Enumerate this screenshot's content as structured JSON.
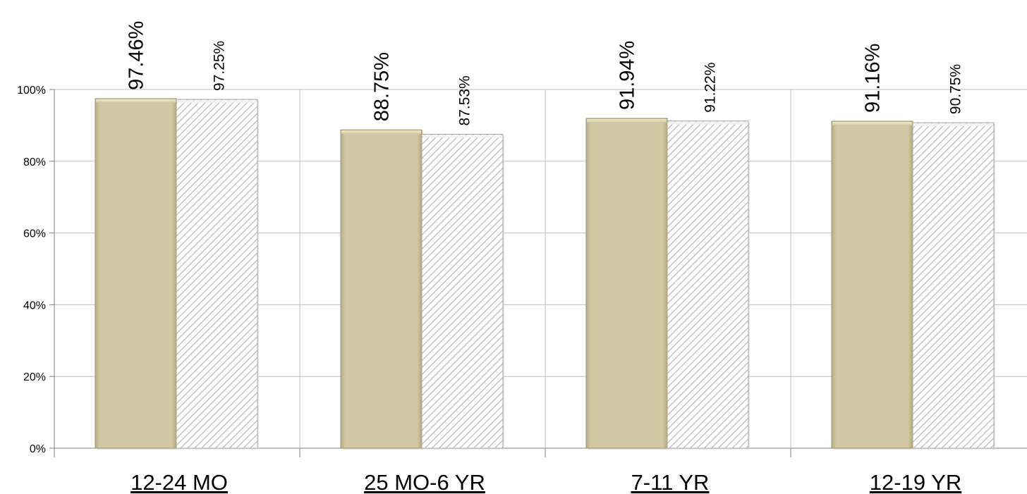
{
  "chart_data": {
    "type": "bar",
    "categories": [
      "12-24 MO",
      "25 MO-6 YR",
      "7-11 YR",
      "12-19 YR"
    ],
    "series": [
      {
        "values": [
          97.46,
          88.75,
          91.94,
          91.16
        ],
        "labels": [
          "97.46%",
          "88.75%",
          "91.94%",
          "91.16%"
        ],
        "color": "#cfc6a0",
        "fill_style": "solid"
      },
      {
        "values": [
          97.25,
          87.53,
          91.22,
          90.75
        ],
        "labels": [
          "97.25%",
          "87.53%",
          "91.22%",
          "90.75%"
        ],
        "color": "#d9d9d9",
        "fill_style": "diagonal-hatch"
      }
    ],
    "yticks": [
      "0%",
      "20%",
      "40%",
      "60%",
      "80%",
      "100%"
    ],
    "ytick_values": [
      0,
      20,
      40,
      60,
      80,
      100
    ],
    "ylim": [
      0,
      100
    ],
    "grid": true,
    "legend": "none",
    "title": "",
    "xlabel": "",
    "ylabel": ""
  }
}
